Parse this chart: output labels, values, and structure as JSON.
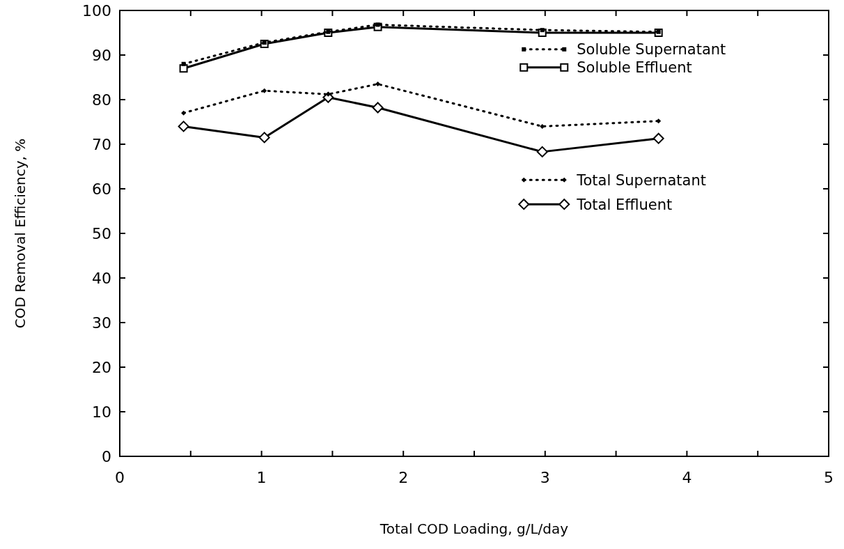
{
  "chart_data": {
    "type": "line",
    "xlabel": "Total COD Loading, g/L/day",
    "ylabel": "COD Removal Efficiency, %",
    "x": [
      0.45,
      1.02,
      1.47,
      1.82,
      2.98,
      3.8
    ],
    "series": [
      {
        "name": "Soluble Supernatant",
        "color": "#000000",
        "marker": "square",
        "line_style": "dotted",
        "values": [
          88,
          92.8,
          95.2,
          96.8,
          95.6,
          95.2
        ]
      },
      {
        "name": "Soluble Effluent",
        "color": "#000000",
        "marker": "square",
        "line_style": "solid",
        "values": [
          87,
          92.5,
          95,
          96.3,
          95,
          95
        ]
      },
      {
        "name": "Total Supernatant",
        "color": "#000000",
        "marker": "diamond",
        "line_style": "dotted",
        "values": [
          77,
          82,
          81.2,
          83.5,
          74,
          75.2
        ]
      },
      {
        "name": "Total Effluent",
        "color": "#000000",
        "marker": "diamond",
        "line_style": "solid",
        "values": [
          74,
          71.5,
          80.5,
          78.2,
          68.3,
          71.3
        ]
      }
    ],
    "xlim": [
      0,
      5
    ],
    "xticks": [
      0,
      {
        "value": 0.5,
        "label": null
      },
      1,
      {
        "value": 1.5,
        "label": null
      },
      2,
      {
        "value": 2.5,
        "label": null
      },
      3,
      {
        "value": 3.5,
        "label": null
      },
      4,
      {
        "value": 4.5,
        "label": null
      },
      5
    ],
    "ylim": [
      0,
      100
    ],
    "yticks": [
      0,
      10,
      20,
      30,
      40,
      50,
      60,
      70,
      80,
      90,
      100
    ],
    "grid": false,
    "legend": "right"
  }
}
